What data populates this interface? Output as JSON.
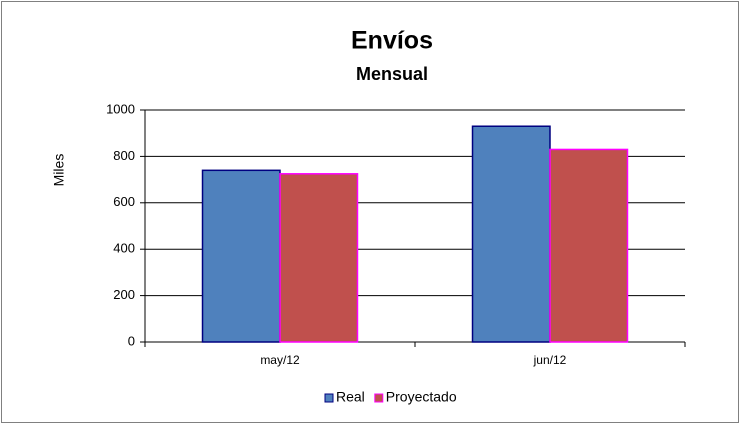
{
  "chart_data": {
    "type": "bar",
    "title": "Envíos",
    "subtitle": "Mensual",
    "y_label": "Miles",
    "categories": [
      "may/12",
      "jun/12"
    ],
    "series": [
      {
        "name": "Real",
        "color": "#4f81bd",
        "border": "#000080",
        "values": [
          740,
          930
        ]
      },
      {
        "name": "Proyectado",
        "color": "#c0504d",
        "border": "#ff00ff",
        "values": [
          725,
          830
        ]
      }
    ],
    "ylim": [
      0,
      1000
    ],
    "yticks": [
      0,
      200,
      400,
      600,
      800,
      1000
    ],
    "grid": true,
    "legend": "bottom"
  }
}
